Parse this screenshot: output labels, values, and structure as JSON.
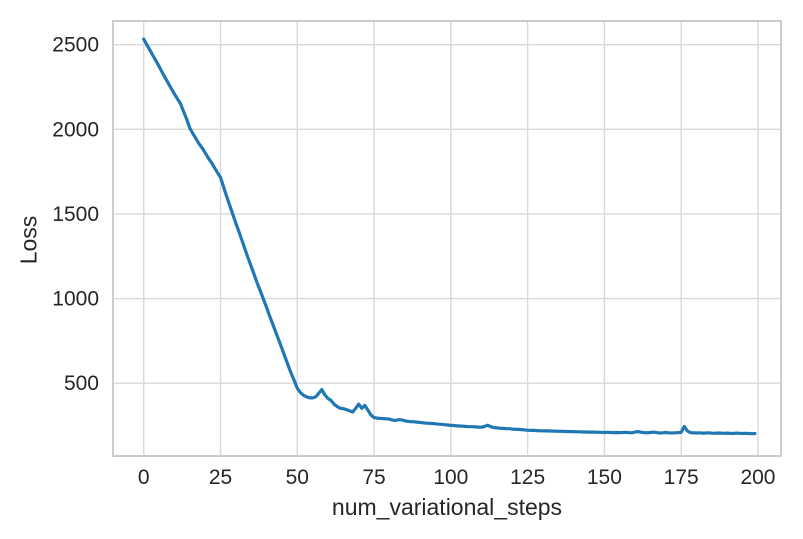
{
  "figure": {
    "background": "#ffffff",
    "plot_background": "#ffffff",
    "grid_color": "#d9d9d9",
    "spine_color": "#cccccc",
    "text_color": "#262626"
  },
  "chart_data": {
    "type": "line",
    "title": "",
    "xlabel": "num_variational_steps",
    "ylabel": "Loss",
    "xlim": [
      -10,
      207.5
    ],
    "ylim": [
      70,
      2640
    ],
    "xticks": [
      0,
      25,
      50,
      75,
      100,
      125,
      150,
      175,
      200
    ],
    "yticks": [
      500,
      1000,
      1500,
      2000,
      2500
    ],
    "grid": true,
    "legend": "none",
    "series": [
      {
        "name": "loss",
        "color": "#1f77b4",
        "linewidth": 3.2,
        "x_start": 0,
        "x_step": 1,
        "n_points": 200,
        "values": [
          2533,
          2500,
          2468,
          2436,
          2405,
          2372,
          2338,
          2305,
          2272,
          2240,
          2210,
          2180,
          2150,
          2105,
          2060,
          2008,
          1975,
          1945,
          1915,
          1890,
          1862,
          1832,
          1805,
          1775,
          1745,
          1716,
          1660,
          1605,
          1551,
          1498,
          1445,
          1395,
          1344,
          1290,
          1240,
          1190,
          1140,
          1090,
          1044,
          996,
          948,
          898,
          850,
          801,
          755,
          706,
          656,
          606,
          560,
          516,
          470,
          445,
          429,
          420,
          414,
          413,
          419,
          441,
          462,
          431,
          410,
          398,
          376,
          362,
          352,
          350,
          344,
          337,
          330,
          351,
          376,
          352,
          369,
          341,
          312,
          297,
          294,
          292,
          291,
          290,
          288,
          282,
          280,
          285,
          283,
          278,
          275,
          273,
          272,
          270,
          268,
          266,
          264,
          263,
          262,
          260,
          258,
          257,
          255,
          253,
          251,
          250,
          248,
          247,
          246,
          244,
          243,
          243,
          242,
          241,
          240,
          245,
          252,
          243,
          238,
          236,
          234,
          233,
          232,
          231,
          229,
          228,
          227,
          226,
          224,
          222,
          221,
          221,
          220,
          219,
          219,
          218,
          218,
          217,
          217,
          216,
          216,
          215,
          215,
          214,
          214,
          213,
          213,
          212,
          212,
          211,
          211,
          211,
          210,
          210,
          209,
          210,
          209,
          208,
          209,
          208,
          209,
          210,
          208,
          207,
          212,
          214,
          210,
          208,
          207,
          209,
          211,
          208,
          206,
          207,
          209,
          207,
          206,
          207,
          208,
          210,
          245,
          218,
          208,
          207,
          206,
          207,
          205,
          206,
          207,
          205,
          204,
          206,
          205,
          204,
          205,
          204,
          203,
          205,
          204,
          203,
          204,
          203,
          202,
          203
        ]
      }
    ]
  }
}
